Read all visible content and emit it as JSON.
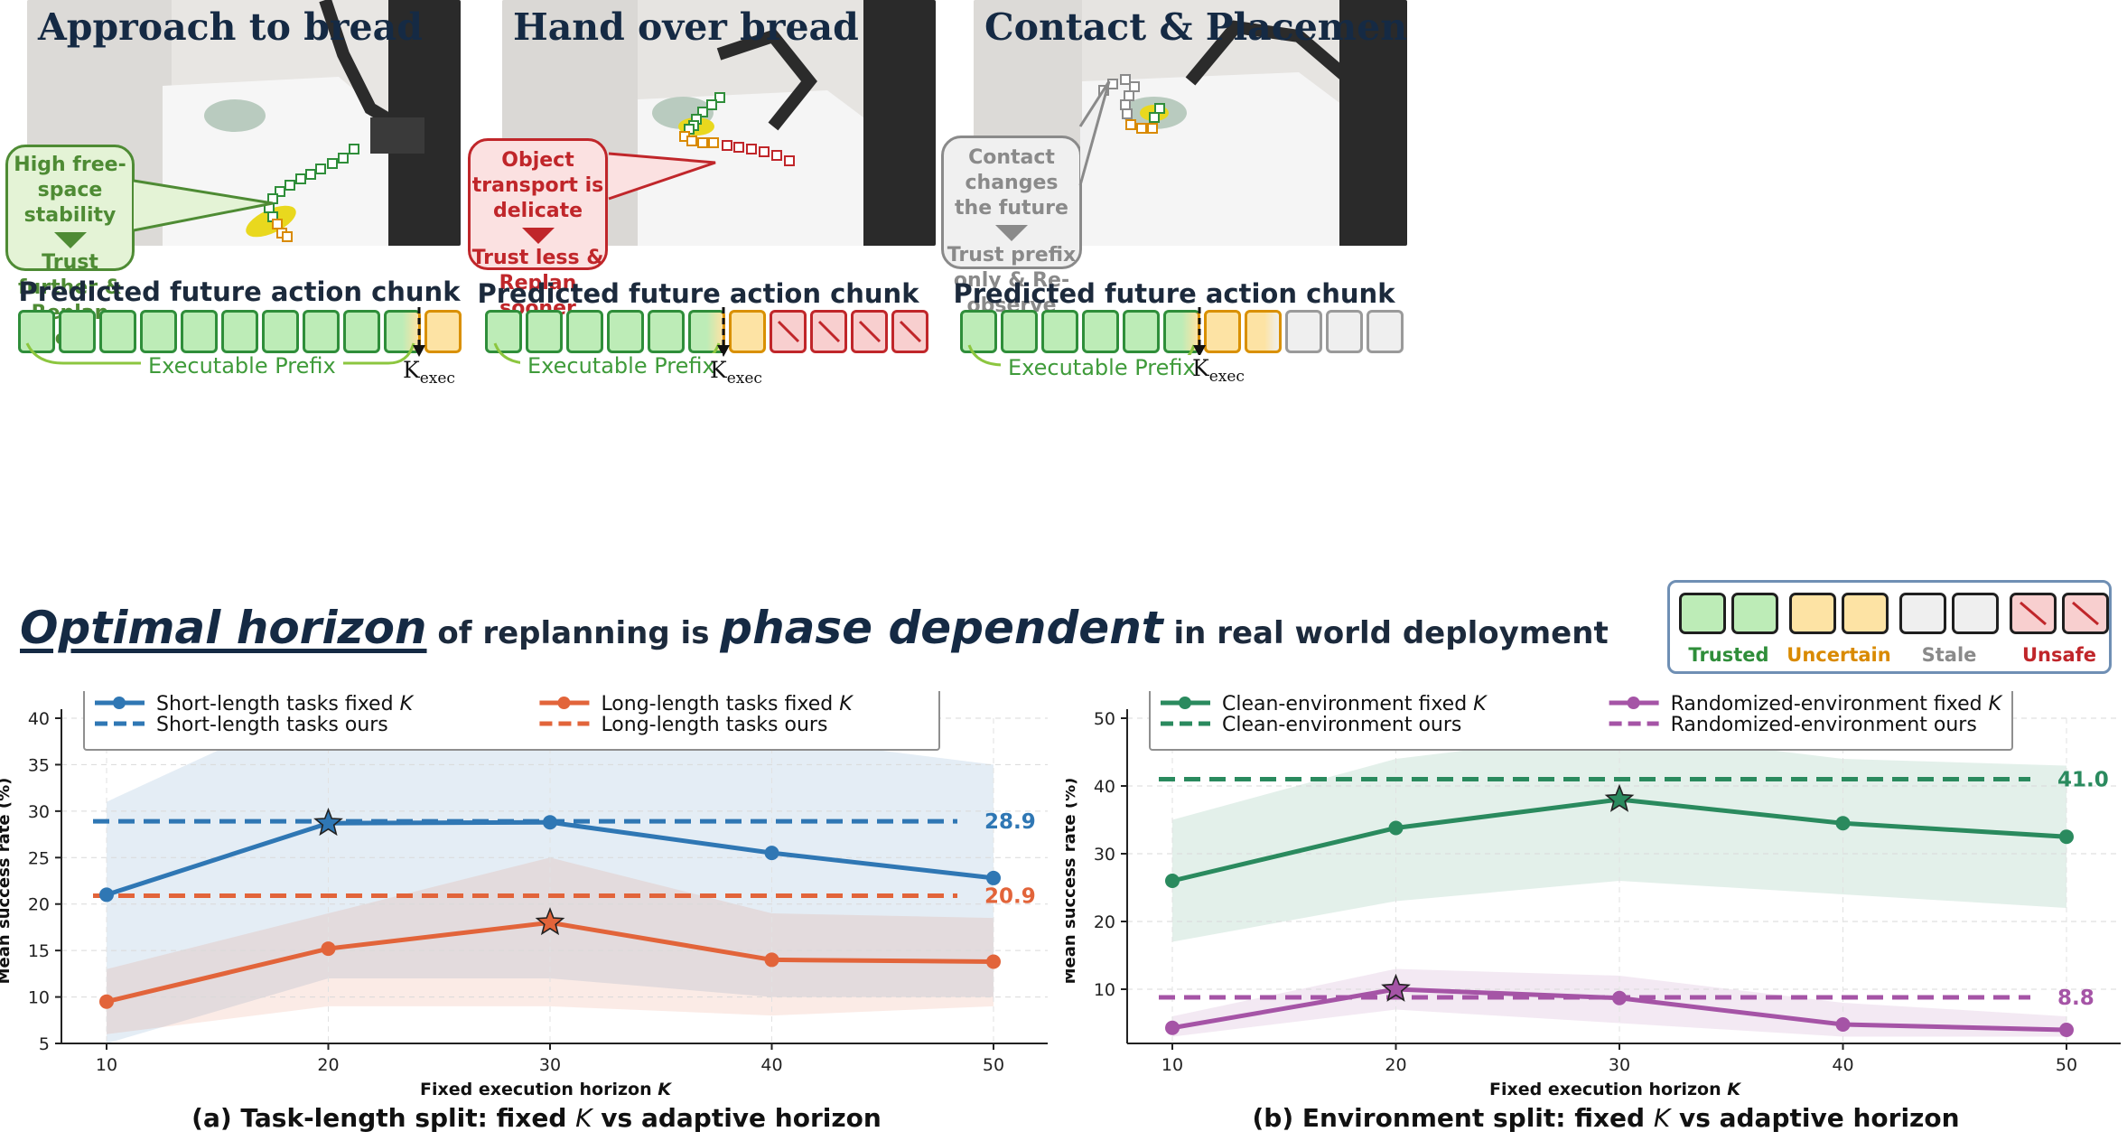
{
  "photos": [
    {
      "title": "Approach to bread",
      "bubble": {
        "top": "High free-space stability",
        "bottom": "Trust further & Replan less"
      }
    },
    {
      "title": "Hand over bread",
      "bubble": {
        "top": "Object transport is delicate",
        "bottom": "Trust less & Replan sooner"
      }
    },
    {
      "title": "Contact & Placement",
      "bubble": {
        "top": "Contact changes the future",
        "bottom": "Trust prefix only & Re-observe"
      }
    }
  ],
  "chunks": {
    "title": "Predicted future action chunk",
    "prefix_label": "Executable Prefix",
    "kexec_main": "K",
    "kexec_sub": "exec",
    "rows": [
      [
        "trusted",
        "trusted",
        "trusted",
        "trusted",
        "trusted",
        "trusted",
        "trusted",
        "trusted",
        "trusted",
        "blend",
        "uncertain"
      ],
      [
        "trusted",
        "trusted",
        "trusted",
        "trusted",
        "trusted",
        "blend",
        "uncertain",
        "unsafe",
        "unsafe",
        "unsafe",
        "unsafe"
      ],
      [
        "trusted",
        "trusted",
        "trusted",
        "trusted",
        "trusted",
        "blend",
        "uncertain",
        "blend2",
        "stale",
        "stale",
        "stale"
      ]
    ]
  },
  "headline": {
    "part1": "Optimal horizon",
    "part2": " of replanning is ",
    "part3": "phase dependent",
    "part4": " in real world deployment"
  },
  "status_legend": [
    {
      "label": "Trusted",
      "color": "#2f8e3a"
    },
    {
      "label": "Uncertain",
      "color": "#d98a00"
    },
    {
      "label": "Stale",
      "color": "#8a8a8a"
    },
    {
      "label": "Unsafe",
      "color": "#c0262a"
    }
  ],
  "chart_data": [
    {
      "type": "line",
      "title": "(a) Task-length split: fixed K vs adaptive horizon",
      "xlabel": "Fixed execution horizon K",
      "ylabel": "Mean success rate (%)",
      "x": [
        10,
        20,
        30,
        40,
        50
      ],
      "xlim": [
        10,
        50
      ],
      "ylim": [
        5,
        40
      ],
      "yticks": [
        5,
        10,
        15,
        20,
        25,
        30,
        35,
        40
      ],
      "grid": true,
      "legend_position": "top",
      "series": [
        {
          "name": "Short-length tasks fixed K",
          "color": "#2f77b4",
          "values": [
            21.0,
            28.7,
            28.8,
            25.5,
            22.8
          ],
          "band_low": [
            5,
            12,
            12,
            10,
            10
          ],
          "band_high": [
            31,
            46,
            46,
            38,
            35
          ],
          "best_index": 1
        },
        {
          "name": "Long-length tasks fixed K",
          "color": "#e2643a",
          "values": [
            9.5,
            15.2,
            18.0,
            14.0,
            13.8
          ],
          "band_low": [
            6,
            9,
            9,
            8,
            9
          ],
          "band_high": [
            13,
            19,
            25,
            19,
            18.5
          ],
          "best_index": 2
        }
      ],
      "references": [
        {
          "name": "Short-length tasks ours",
          "color": "#2f77b4",
          "value": 28.9,
          "label": "28.9"
        },
        {
          "name": "Long-length tasks ours",
          "color": "#e2643a",
          "value": 20.9,
          "label": "20.9"
        }
      ]
    },
    {
      "type": "line",
      "title": "(b) Environment split: fixed K vs adaptive horizon",
      "xlabel": "Fixed execution horizon K",
      "ylabel": "Mean success rate (%)",
      "x": [
        10,
        20,
        30,
        40,
        50
      ],
      "xlim": [
        10,
        50
      ],
      "ylim": [
        2,
        50
      ],
      "yticks": [
        10,
        20,
        30,
        40,
        50
      ],
      "grid": true,
      "legend_position": "top",
      "series": [
        {
          "name": "Clean-environment fixed K",
          "color": "#2a8a5e",
          "values": [
            26.0,
            33.8,
            38.0,
            34.5,
            32.5
          ],
          "band_low": [
            17,
            23,
            26,
            24,
            22
          ],
          "band_high": [
            35,
            44,
            48,
            44,
            43
          ],
          "best_index": 2
        },
        {
          "name": "Randomized-environment fixed K",
          "color": "#a554a6",
          "values": [
            4.3,
            10.0,
            8.7,
            4.8,
            4.0
          ],
          "band_low": [
            3,
            7,
            5,
            3,
            3
          ],
          "band_high": [
            6,
            13,
            12,
            8,
            6
          ],
          "best_index": 1
        }
      ],
      "references": [
        {
          "name": "Clean-environment ours",
          "color": "#2a8a5e",
          "value": 41.0,
          "label": "41.0"
        },
        {
          "name": "Randomized-environment ours",
          "color": "#a554a6",
          "value": 8.8,
          "label": "8.8"
        }
      ]
    }
  ]
}
